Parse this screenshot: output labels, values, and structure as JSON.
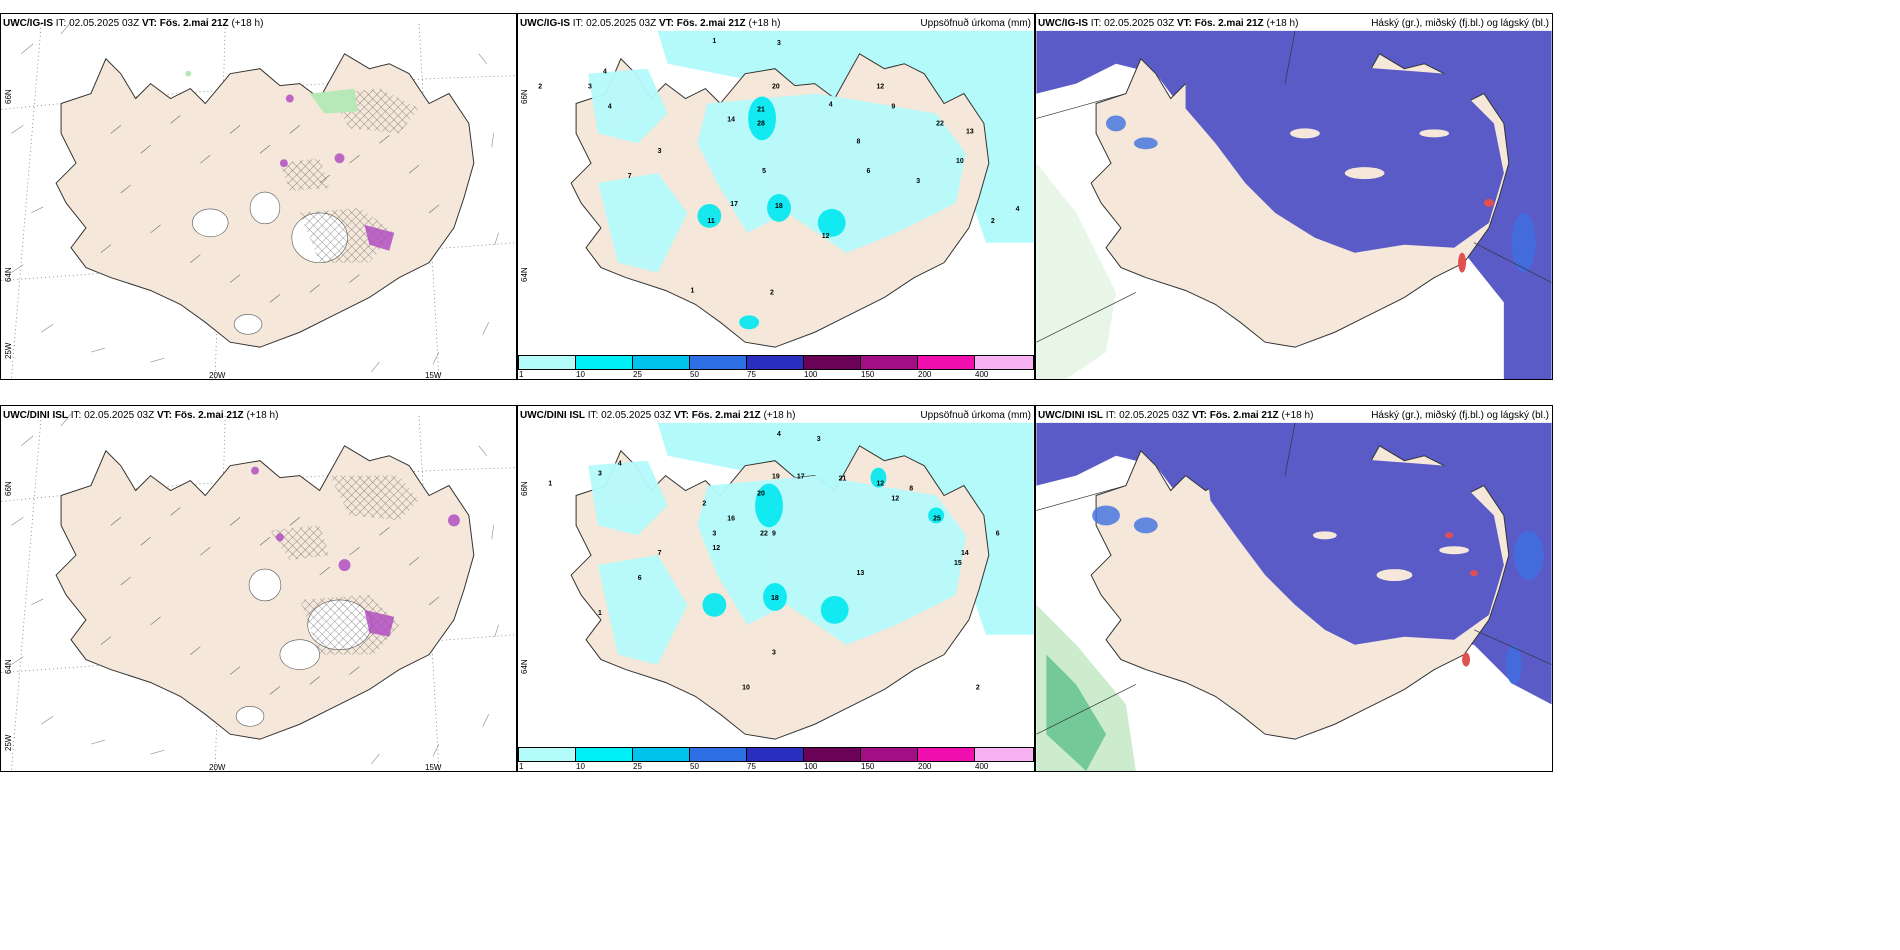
{
  "panels": [
    {
      "id": "p1",
      "model": "UWC/IG-IS",
      "it_prefix": "IT: 02.05.2025 03Z",
      "vt_prefix": "VT:",
      "vt": "Fös. 2.mai 21Z",
      "lead": "(+18 h)",
      "right": "",
      "ticks": {
        "lat66": "66N",
        "lat64": "64N",
        "lon25": "25W",
        "lon20": "20W",
        "lon15": "15W"
      }
    },
    {
      "id": "p2",
      "model": "UWC/IG-IS",
      "it_prefix": "IT: 02.05.2025 03Z",
      "vt_prefix": "VT:",
      "vt": "Fös. 2.mai 21Z",
      "lead": "(+18 h)",
      "right": "Uppsöfnuð úrkoma (mm)",
      "ticks": {
        "lat66": "66N",
        "lat64": "64N"
      }
    },
    {
      "id": "p3",
      "model": "UWC/IG-IS",
      "it_prefix": "IT: 02.05.2025 03Z",
      "vt_prefix": "VT:",
      "vt": "Fös. 2.mai 21Z",
      "lead": "(+18 h)",
      "right": "Háský (gr.), miðský (fj.bl.) og lágský (bl.)"
    },
    {
      "id": "p4",
      "model": "UWC/DINI ISL",
      "it_prefix": "IT: 02.05.2025 03Z",
      "vt_prefix": "VT:",
      "vt": "Fös. 2.mai 21Z",
      "lead": "(+18 h)",
      "right": "",
      "ticks": {
        "lat66": "66N",
        "lat64": "64N",
        "lon25": "25W",
        "lon20": "20W",
        "lon15": "15W"
      }
    },
    {
      "id": "p5",
      "model": "UWC/DINI ISL",
      "it_prefix": "IT: 02.05.2025 03Z",
      "vt_prefix": "VT:",
      "vt": "Fös. 2.mai 21Z",
      "lead": "(+18 h)",
      "right": "Uppsöfnuð úrkoma (mm)",
      "ticks": {
        "lat66": "66N",
        "lat64": "64N"
      }
    },
    {
      "id": "p6",
      "model": "UWC/DINI ISL",
      "it_prefix": "IT: 02.05.2025 03Z",
      "vt_prefix": "VT:",
      "vt": "Fös. 2.mai 21Z",
      "lead": "(+18 h)",
      "right": "Háský (gr.), miðský (fj.bl.) og lágský (bl.)"
    }
  ],
  "colorbar": {
    "labels": [
      "1",
      "10",
      "25",
      "50",
      "75",
      "100",
      "150",
      "200",
      "400"
    ],
    "colors": [
      "#b3fcf9",
      "#00eef5",
      "#00c3eb",
      "#2f6fe6",
      "#2b2fbf",
      "#6b0257",
      "#a10e86",
      "#f20fb0",
      "#f6b2f2"
    ]
  },
  "colors": {
    "land": "#f5e8da",
    "land_dark": "#e6d2bc",
    "coast": "#333333",
    "precip_light": "#b5fafb",
    "precip_mid": "#00e8f0",
    "cloud_high": "#5b5bc8",
    "cloud_low": "#3e6fe0",
    "cloud_green": "#b7e8b7",
    "red": "#e05050",
    "hatch": "#555555",
    "magenta": "#b24fc2"
  },
  "precip_labels_top": [
    "1",
    "3",
    "4",
    "3",
    "4",
    "2",
    "7",
    "3",
    "5",
    "14",
    "20",
    "21",
    "28",
    "4",
    "12",
    "9",
    "8",
    "6",
    "3",
    "2",
    "13",
    "22",
    "10",
    "18",
    "17",
    "11",
    "12",
    "2",
    "4",
    "1"
  ],
  "precip_labels_bottom": [
    "1",
    "3",
    "4",
    "6",
    "7",
    "2",
    "3",
    "12",
    "16",
    "20",
    "19",
    "17",
    "21",
    "12",
    "9",
    "13",
    "22",
    "18",
    "12",
    "8",
    "25",
    "10",
    "14",
    "15",
    "2",
    "3",
    "1",
    "6",
    "4",
    "3"
  ]
}
